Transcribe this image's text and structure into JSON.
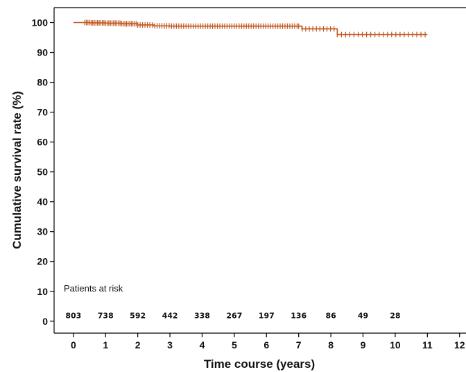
{
  "chart_data": {
    "type": "line",
    "step": true,
    "censor_marks": true,
    "title": "",
    "xlabel": "Time course (years)",
    "ylabel": "Cumulative survival rate (%)",
    "xlim": [
      -0.6,
      12.2
    ],
    "ylim": [
      -4,
      105
    ],
    "x_ticks": [
      0,
      1,
      2,
      3,
      4,
      5,
      6,
      7,
      8,
      9,
      10,
      11,
      12
    ],
    "y_ticks": [
      0,
      10,
      20,
      30,
      40,
      50,
      60,
      70,
      80,
      90,
      100
    ],
    "grid": false,
    "color": "#c0561b",
    "series": [
      {
        "x": [
          0,
          0.3,
          0.5,
          1.0,
          1.5,
          2.0,
          2.5,
          3.0,
          4.0,
          5.0,
          6.0,
          7.0,
          7.1,
          8.0,
          8.2,
          9.0,
          10.0,
          11.0
        ],
        "y": [
          100,
          100,
          99.9,
          99.8,
          99.6,
          99.2,
          98.9,
          98.8,
          98.8,
          98.8,
          98.8,
          98.8,
          97.9,
          97.9,
          96.0,
          96.0,
          96.0,
          96.0
        ]
      }
    ],
    "risk_table": {
      "title": "Patients at risk",
      "times": [
        0,
        1,
        2,
        3,
        4,
        5,
        6,
        7,
        8,
        9,
        10
      ],
      "counts": [
        "803",
        "738",
        "592",
        "442",
        "338",
        "267",
        "197",
        "136",
        "86",
        "49",
        "28"
      ]
    }
  }
}
